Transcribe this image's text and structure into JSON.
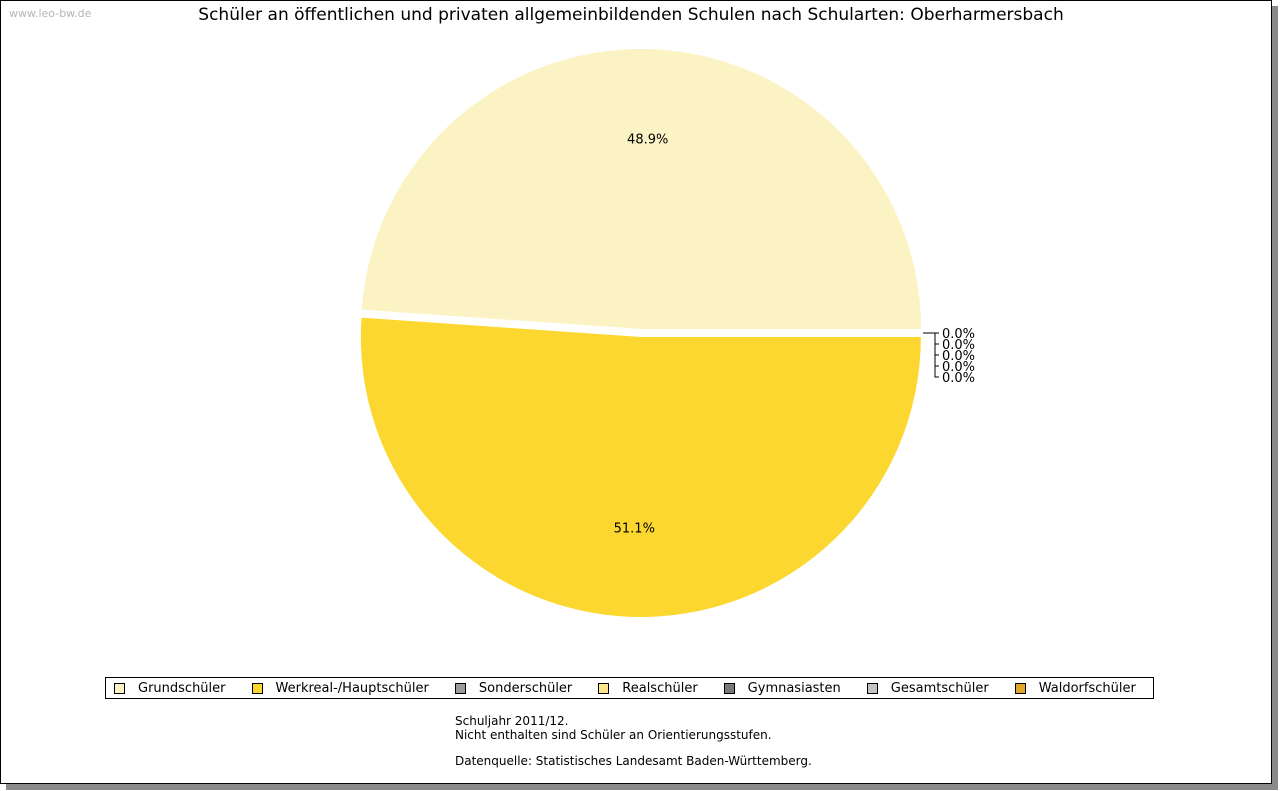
{
  "watermark": "www.leo-bw.de",
  "chart_data": {
    "type": "pie",
    "title": "Schüler an öffentlichen und privaten allgemeinbildenden Schulen nach Schularten: Oberharmersbach",
    "categories": [
      "Grundschüler",
      "Werkreal-/Hauptschüler",
      "Sonderschüler",
      "Realschüler",
      "Gymnasiasten",
      "Gesamtschüler",
      "Waldorfschüler"
    ],
    "values": [
      48.9,
      51.1,
      0.0,
      0.0,
      0.0,
      0.0,
      0.0
    ],
    "labels": [
      "48.9%",
      "51.1%",
      "0.0%",
      "0.0%",
      "0.0%",
      "0.0%",
      "0.0%"
    ],
    "colors": [
      "#fcf3c5",
      "#fcd72f",
      "#9b9b9b",
      "#fbe68e",
      "#7a7a7a",
      "#c4c4c4",
      "#e0a82a"
    ],
    "legend_position": "bottom"
  },
  "notes": {
    "line1": "Schuljahr 2011/12.",
    "line2": "Nicht enthalten sind Schüler an Orientierungsstufen.",
    "line3": "Datenquelle: Statistisches Landesamt Baden-Württemberg."
  }
}
